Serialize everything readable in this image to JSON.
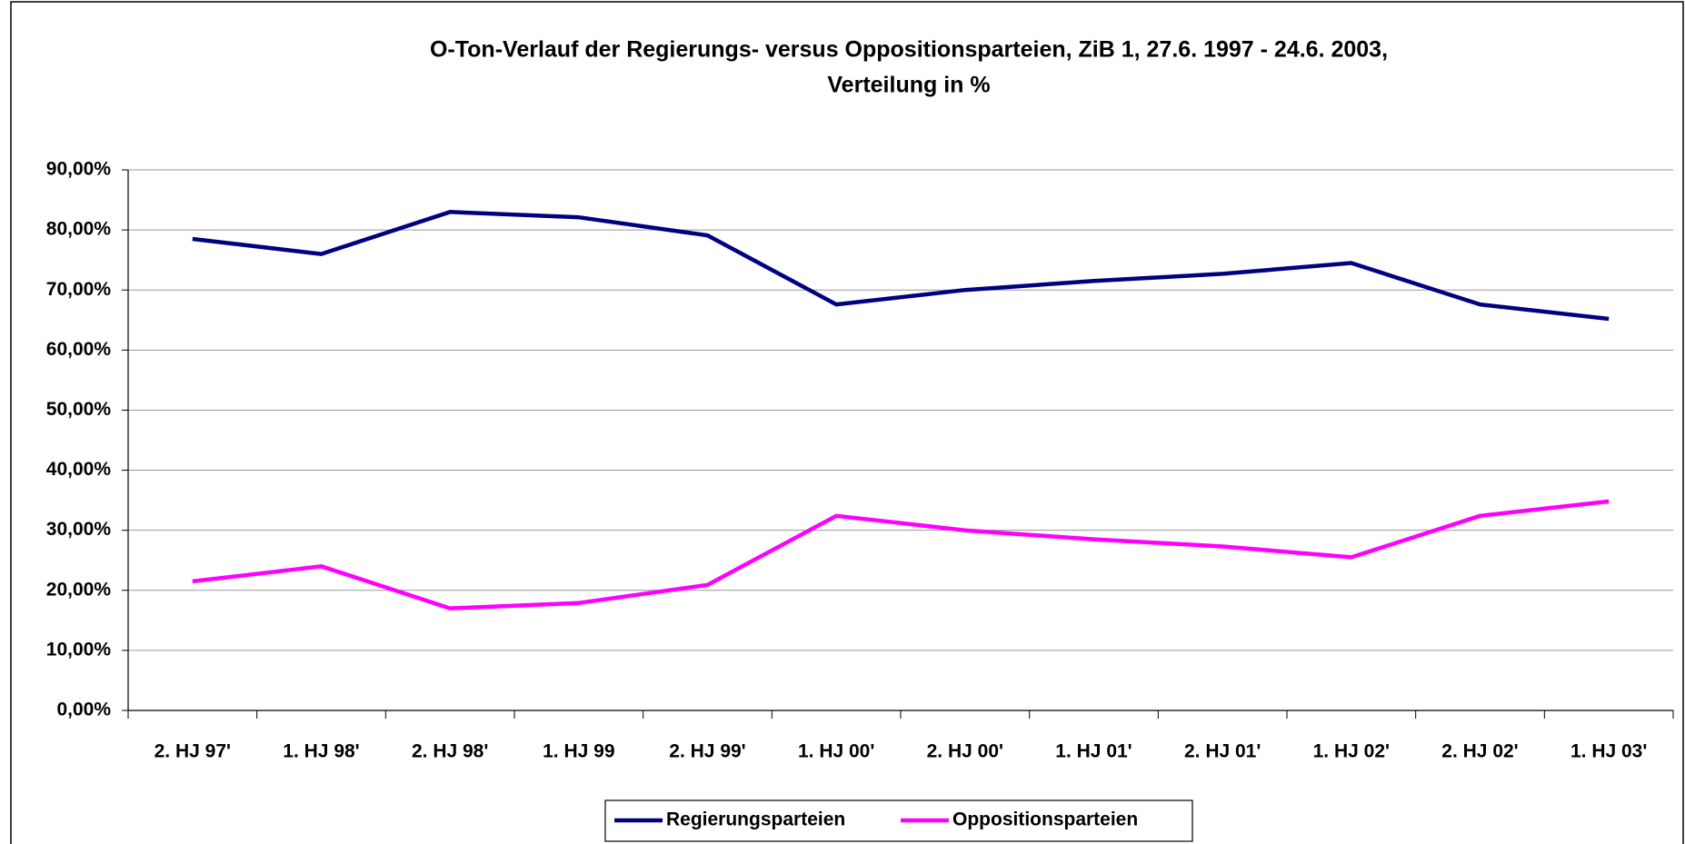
{
  "chart_data": {
    "type": "line",
    "title": [
      "O-Ton-Verlauf der Regierungs- versus Oppositionsparteien, ZiB 1, 27.6. 1997 - 24.6. 2003,",
      "Verteilung in %"
    ],
    "categories": [
      "2. HJ 97'",
      "1. HJ 98'",
      "2. HJ 98'",
      "1. HJ 99",
      "2. HJ 99'",
      "1. HJ 00'",
      "2. HJ 00'",
      "1. HJ 01'",
      "2. HJ 01'",
      "1. HJ 02'",
      "2. HJ 02'",
      "1. HJ 03'"
    ],
    "series": [
      {
        "name": "Regierungsparteien",
        "color": "#000080",
        "values": [
          78.5,
          76.0,
          83.0,
          82.1,
          79.1,
          67.6,
          70.0,
          71.5,
          72.7,
          74.5,
          67.6,
          65.2
        ]
      },
      {
        "name": "Oppositionsparteien",
        "color": "#ff00ff",
        "values": [
          21.5,
          24.0,
          17.0,
          17.9,
          20.9,
          32.4,
          30.0,
          28.5,
          27.3,
          25.5,
          32.4,
          34.8
        ]
      }
    ],
    "ylim": [
      0,
      90
    ],
    "yticks": [
      {
        "value": 0,
        "label": "0,00%"
      },
      {
        "value": 10,
        "label": "10,00%"
      },
      {
        "value": 20,
        "label": "20,00%"
      },
      {
        "value": 30,
        "label": "30,00%"
      },
      {
        "value": 40,
        "label": "40,00%"
      },
      {
        "value": 50,
        "label": "50,00%"
      },
      {
        "value": 60,
        "label": "60,00%"
      },
      {
        "value": 70,
        "label": "70,00%"
      },
      {
        "value": 80,
        "label": "80,00%"
      },
      {
        "value": 90,
        "label": "90,00%"
      }
    ],
    "grid": true,
    "legend": "bottom"
  }
}
